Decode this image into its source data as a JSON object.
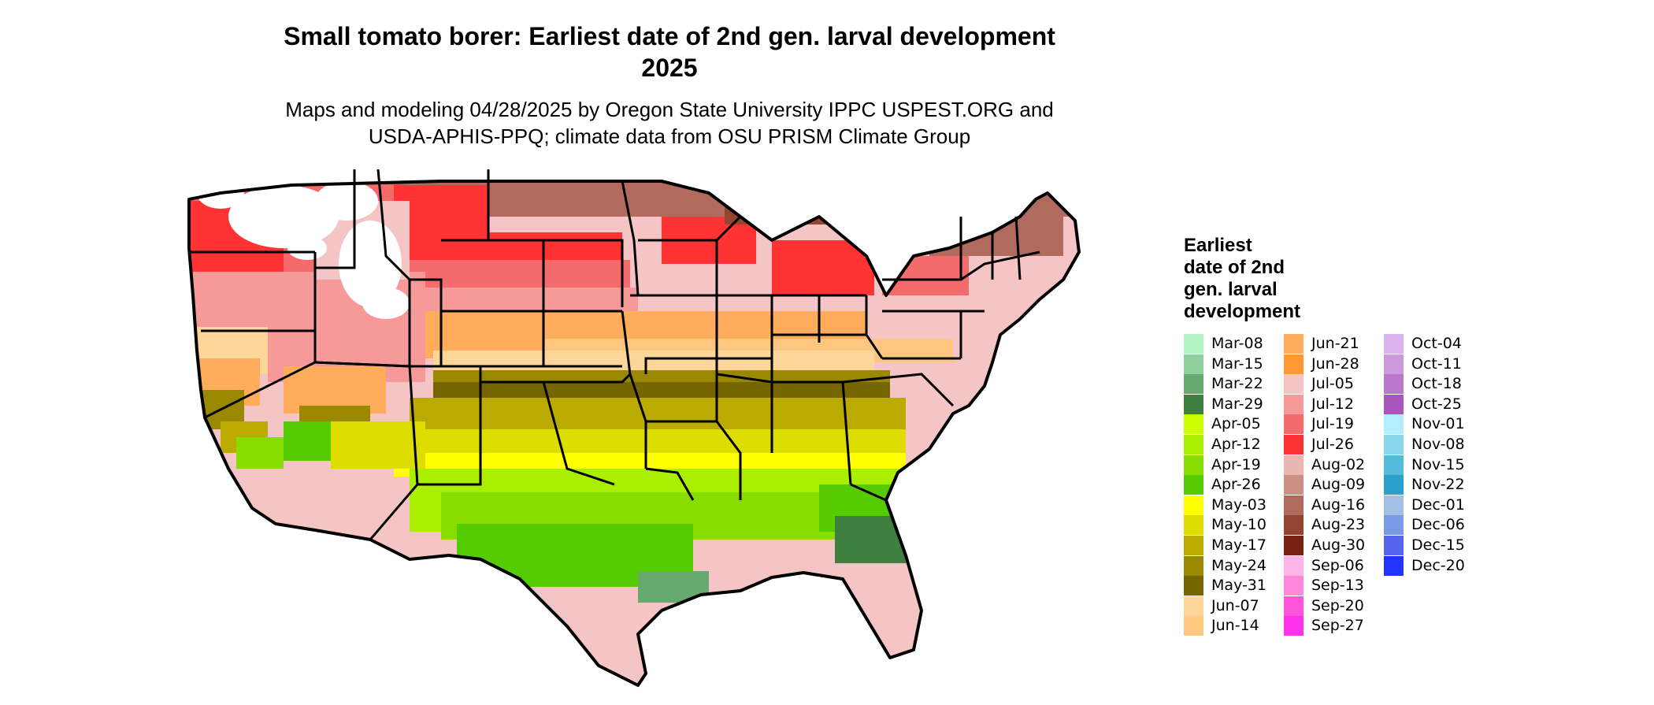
{
  "header": {
    "title_line1": "Small tomato borer: Earliest date of 2nd gen. larval development",
    "title_line2": "2025",
    "subtitle_line1": "Maps and modeling 04/28/2025 by Oregon State University IPPC USPEST.ORG and",
    "subtitle_line2": "USDA-APHIS-PPQ; climate data from OSU PRISM Climate Group"
  },
  "legend": {
    "title_lines": [
      "Earliest",
      "date of 2nd",
      "gen. larval",
      "development"
    ],
    "columns": [
      [
        {
          "label": "Mar-08",
          "color": "#b3f5c4"
        },
        {
          "label": "Mar-15",
          "color": "#8fd19e"
        },
        {
          "label": "Mar-22",
          "color": "#66aa70"
        },
        {
          "label": "Mar-29",
          "color": "#3f7f3f"
        },
        {
          "label": "Apr-05",
          "color": "#ccff00"
        },
        {
          "label": "Apr-12",
          "color": "#aaee00"
        },
        {
          "label": "Apr-19",
          "color": "#88dd00"
        },
        {
          "label": "Apr-26",
          "color": "#55cc00"
        },
        {
          "label": "May-03",
          "color": "#ffff00"
        },
        {
          "label": "May-10",
          "color": "#dddd00"
        },
        {
          "label": "May-17",
          "color": "#bbaa00"
        },
        {
          "label": "May-24",
          "color": "#998800"
        },
        {
          "label": "May-31",
          "color": "#776600"
        },
        {
          "label": "Jun-07",
          "color": "#ffd699"
        },
        {
          "label": "Jun-14",
          "color": "#ffc680"
        }
      ],
      [
        {
          "label": "Jun-21",
          "color": "#ffad5c"
        },
        {
          "label": "Jun-28",
          "color": "#ff9933"
        },
        {
          "label": "Jul-05",
          "color": "#f5c5c5"
        },
        {
          "label": "Jul-12",
          "color": "#f59999"
        },
        {
          "label": "Jul-19",
          "color": "#f56b6b"
        },
        {
          "label": "Jul-26",
          "color": "#ff3333"
        },
        {
          "label": "Aug-02",
          "color": "#e8b8b0"
        },
        {
          "label": "Aug-09",
          "color": "#cc8f85"
        },
        {
          "label": "Aug-16",
          "color": "#b06a5e"
        },
        {
          "label": "Aug-23",
          "color": "#944433"
        },
        {
          "label": "Aug-30",
          "color": "#7a2211"
        },
        {
          "label": "Sep-06",
          "color": "#ffb3e6"
        },
        {
          "label": "Sep-13",
          "color": "#ff88dd"
        },
        {
          "label": "Sep-20",
          "color": "#ff55dd"
        },
        {
          "label": "Sep-27",
          "color": "#ff33ee"
        }
      ],
      [
        {
          "label": "Oct-04",
          "color": "#ddb3ee"
        },
        {
          "label": "Oct-11",
          "color": "#cc99dd"
        },
        {
          "label": "Oct-18",
          "color": "#bb77cc"
        },
        {
          "label": "Oct-25",
          "color": "#aa55bb"
        },
        {
          "label": "Nov-01",
          "color": "#b3eeff"
        },
        {
          "label": "Nov-08",
          "color": "#88d5ee"
        },
        {
          "label": "Nov-15",
          "color": "#55bbdd"
        },
        {
          "label": "Nov-22",
          "color": "#2aa1cc"
        },
        {
          "label": "Dec-01",
          "color": "#a3bfe6"
        },
        {
          "label": "Dec-06",
          "color": "#7a99e6"
        },
        {
          "label": "Dec-15",
          "color": "#5566ee"
        },
        {
          "label": "Dec-20",
          "color": "#2233ff"
        }
      ]
    ]
  }
}
